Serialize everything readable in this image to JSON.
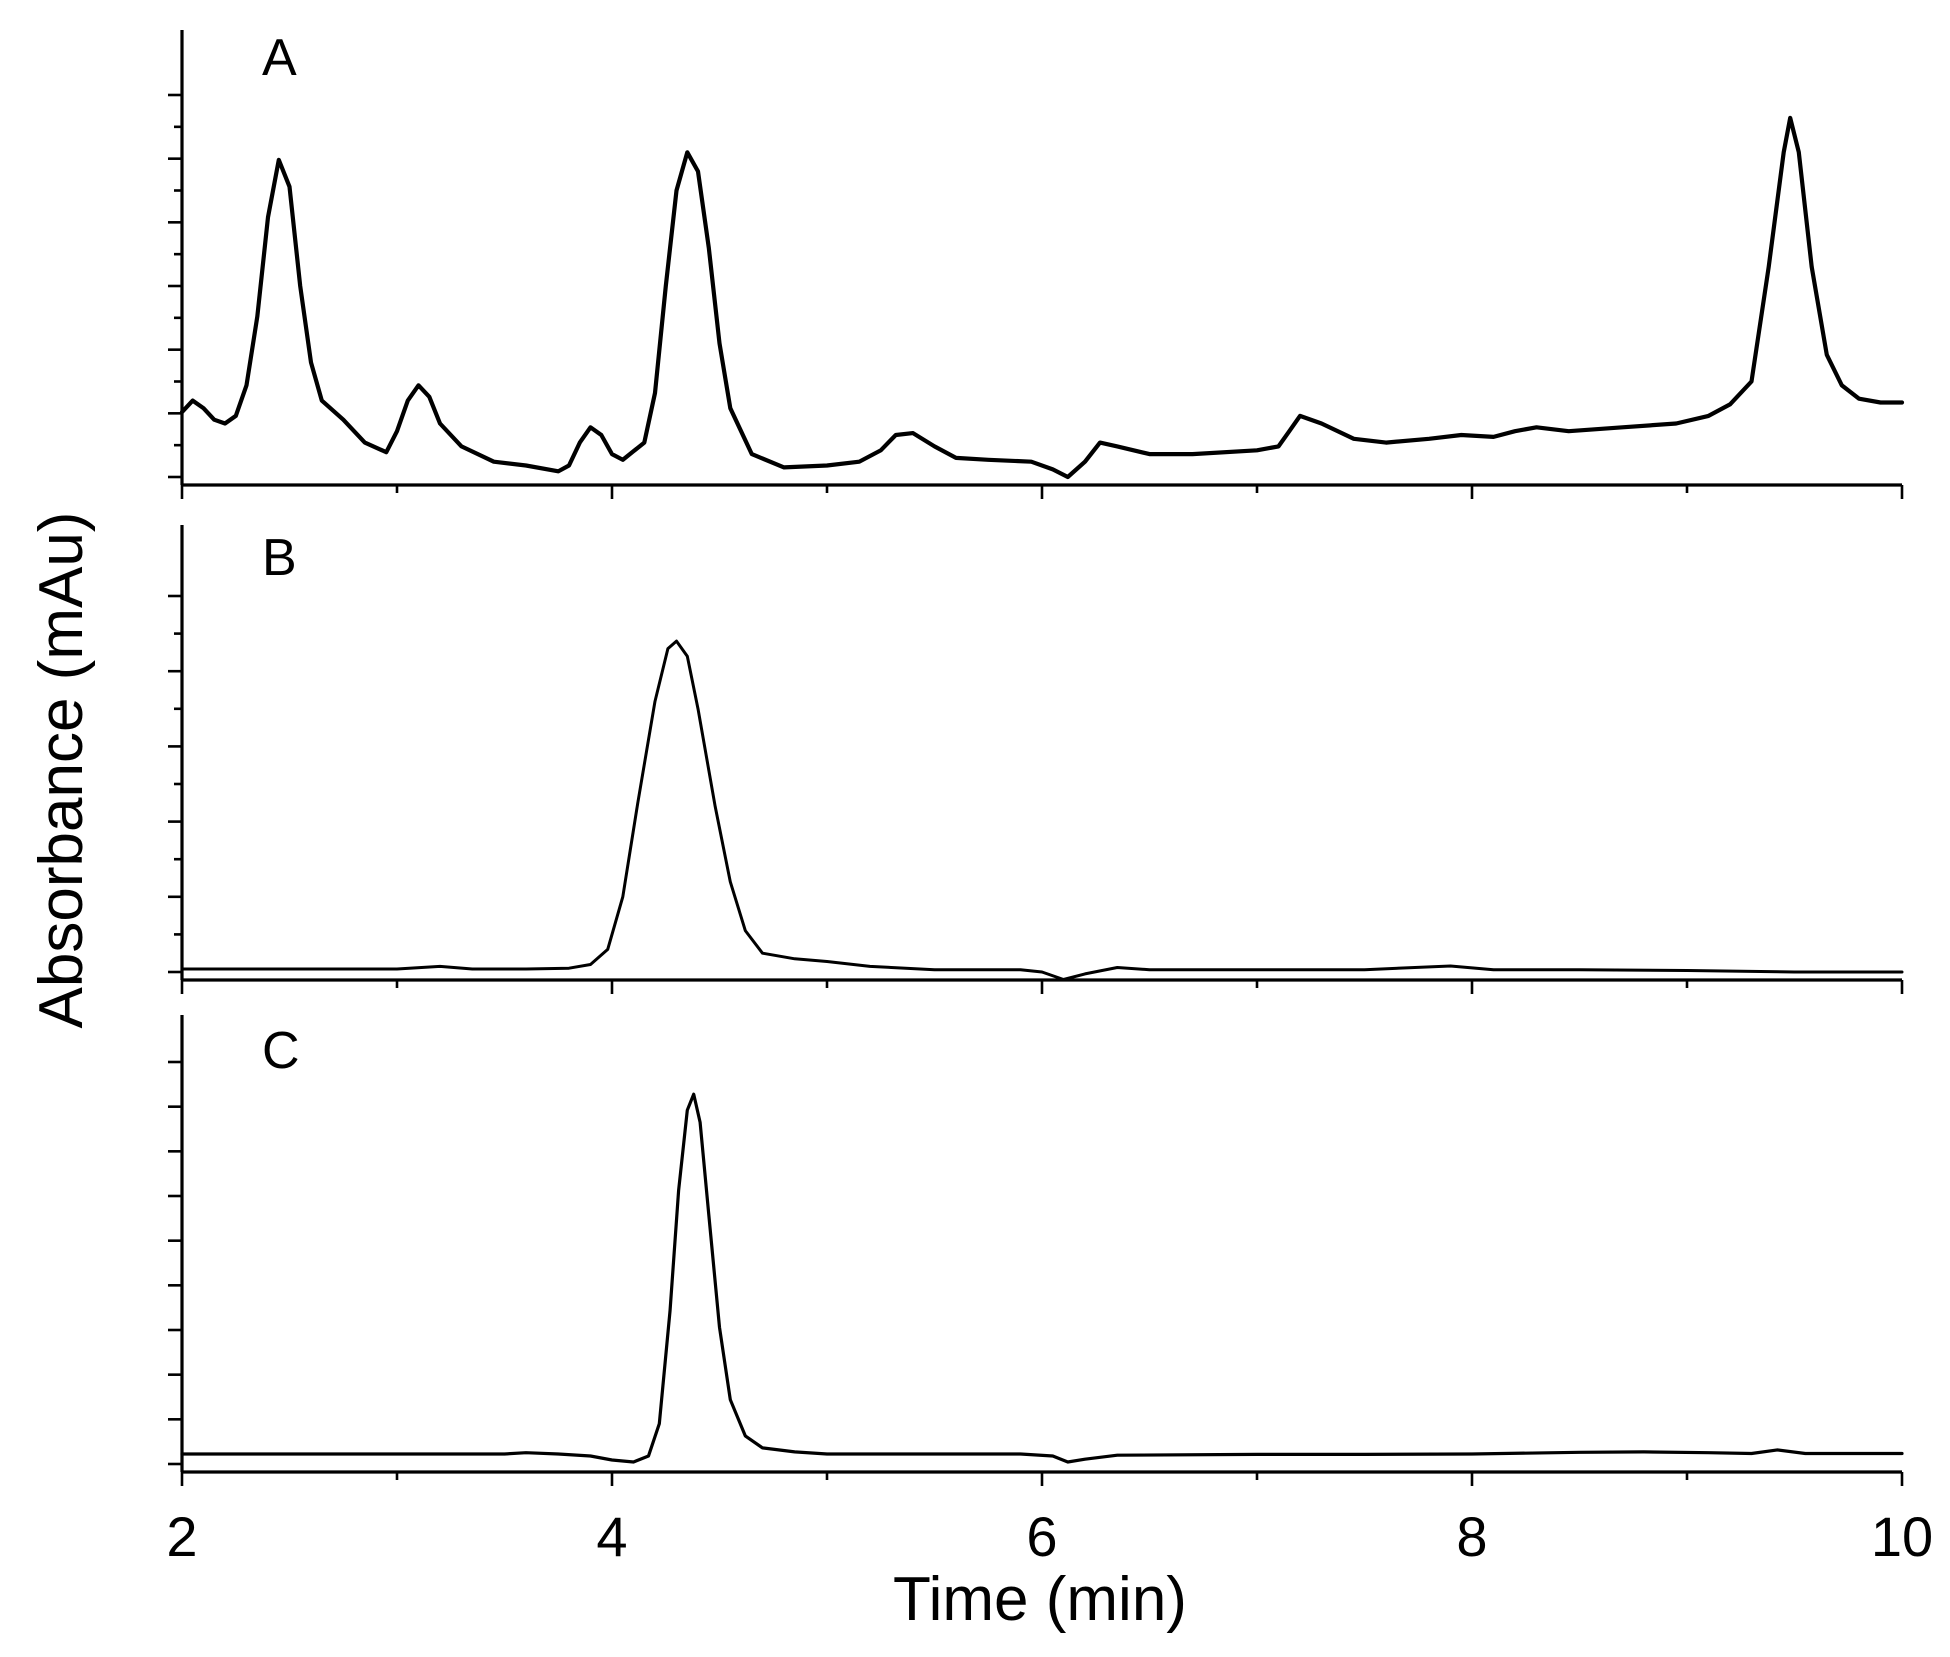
{
  "chart_data": {
    "type": "line",
    "xlabel": "Time (min)",
    "ylabel": "Absorbance (mAu)",
    "xlim": [
      2,
      10
    ],
    "x_ticks": [
      "2",
      "4",
      "6",
      "8",
      "10"
    ],
    "grid": false,
    "y_tick_labels_shown": false,
    "panels": [
      {
        "label": "A",
        "ylim": [
          0,
          100
        ],
        "points": [
          [
            2.0,
            17
          ],
          [
            2.05,
            20
          ],
          [
            2.1,
            18
          ],
          [
            2.15,
            15
          ],
          [
            2.2,
            14
          ],
          [
            2.25,
            16
          ],
          [
            2.3,
            24
          ],
          [
            2.35,
            42
          ],
          [
            2.4,
            68
          ],
          [
            2.45,
            83
          ],
          [
            2.5,
            76
          ],
          [
            2.55,
            50
          ],
          [
            2.6,
            30
          ],
          [
            2.65,
            20
          ],
          [
            2.75,
            15
          ],
          [
            2.85,
            9
          ],
          [
            2.95,
            6.5
          ],
          [
            3.0,
            12
          ],
          [
            3.05,
            20
          ],
          [
            3.1,
            24
          ],
          [
            3.15,
            21
          ],
          [
            3.2,
            14
          ],
          [
            3.3,
            8
          ],
          [
            3.45,
            4
          ],
          [
            3.6,
            3
          ],
          [
            3.75,
            1.5
          ],
          [
            3.8,
            3
          ],
          [
            3.85,
            9
          ],
          [
            3.9,
            13
          ],
          [
            3.95,
            11
          ],
          [
            4.0,
            6
          ],
          [
            4.05,
            4.5
          ],
          [
            4.15,
            9
          ],
          [
            4.2,
            22
          ],
          [
            4.25,
            50
          ],
          [
            4.3,
            75
          ],
          [
            4.35,
            85
          ],
          [
            4.4,
            80
          ],
          [
            4.45,
            60
          ],
          [
            4.5,
            35
          ],
          [
            4.55,
            18
          ],
          [
            4.65,
            6
          ],
          [
            4.8,
            2.5
          ],
          [
            5.0,
            3
          ],
          [
            5.15,
            4
          ],
          [
            5.25,
            7
          ],
          [
            5.32,
            11
          ],
          [
            5.4,
            11.5
          ],
          [
            5.5,
            8
          ],
          [
            5.6,
            5
          ],
          [
            5.75,
            4.5
          ],
          [
            5.95,
            4
          ],
          [
            6.05,
            2
          ],
          [
            6.12,
            0
          ],
          [
            6.2,
            4
          ],
          [
            6.27,
            9
          ],
          [
            6.35,
            8
          ],
          [
            6.5,
            6
          ],
          [
            6.7,
            6
          ],
          [
            7.0,
            7
          ],
          [
            7.1,
            8
          ],
          [
            7.15,
            12
          ],
          [
            7.2,
            16
          ],
          [
            7.3,
            14
          ],
          [
            7.45,
            10
          ],
          [
            7.6,
            9
          ],
          [
            7.8,
            10
          ],
          [
            7.95,
            11
          ],
          [
            8.1,
            10.5
          ],
          [
            8.2,
            12
          ],
          [
            8.3,
            13
          ],
          [
            8.45,
            12
          ],
          [
            8.7,
            13
          ],
          [
            8.95,
            14
          ],
          [
            9.1,
            16
          ],
          [
            9.2,
            19
          ],
          [
            9.3,
            25
          ],
          [
            9.38,
            55
          ],
          [
            9.45,
            85
          ],
          [
            9.48,
            94
          ],
          [
            9.52,
            85
          ],
          [
            9.58,
            55
          ],
          [
            9.65,
            32
          ],
          [
            9.72,
            24
          ],
          [
            9.8,
            20.5
          ],
          [
            9.9,
            19.5
          ],
          [
            10.0,
            19.5
          ]
        ]
      },
      {
        "label": "B",
        "ylim": [
          0,
          100
        ],
        "points": [
          [
            2.0,
            0.8
          ],
          [
            2.5,
            0.8
          ],
          [
            3.0,
            0.8
          ],
          [
            3.2,
            1.5
          ],
          [
            3.35,
            0.8
          ],
          [
            3.6,
            0.8
          ],
          [
            3.8,
            1
          ],
          [
            3.9,
            2
          ],
          [
            3.98,
            6
          ],
          [
            4.05,
            20
          ],
          [
            4.12,
            45
          ],
          [
            4.2,
            72
          ],
          [
            4.26,
            86
          ],
          [
            4.3,
            88
          ],
          [
            4.35,
            84
          ],
          [
            4.4,
            70
          ],
          [
            4.48,
            44
          ],
          [
            4.55,
            24
          ],
          [
            4.62,
            11
          ],
          [
            4.7,
            5
          ],
          [
            4.85,
            3.5
          ],
          [
            5.0,
            2.8
          ],
          [
            5.2,
            1.5
          ],
          [
            5.5,
            0.6
          ],
          [
            5.9,
            0.6
          ],
          [
            6.0,
            0
          ],
          [
            6.1,
            -2
          ],
          [
            6.2,
            -0.5
          ],
          [
            6.35,
            1.2
          ],
          [
            6.5,
            0.6
          ],
          [
            7.0,
            0.6
          ],
          [
            7.5,
            0.6
          ],
          [
            7.9,
            1.6
          ],
          [
            8.1,
            0.6
          ],
          [
            8.5,
            0.6
          ],
          [
            9.0,
            0.4
          ],
          [
            9.5,
            0
          ],
          [
            10.0,
            0
          ]
        ]
      },
      {
        "label": "C",
        "ylim": [
          0,
          100
        ],
        "points": [
          [
            2.0,
            2.5
          ],
          [
            2.5,
            2.5
          ],
          [
            3.0,
            2.5
          ],
          [
            3.5,
            2.5
          ],
          [
            3.6,
            2.8
          ],
          [
            3.75,
            2.5
          ],
          [
            3.9,
            2
          ],
          [
            4.0,
            1
          ],
          [
            4.1,
            0.5
          ],
          [
            4.17,
            2
          ],
          [
            4.22,
            10
          ],
          [
            4.27,
            38
          ],
          [
            4.31,
            68
          ],
          [
            4.35,
            88
          ],
          [
            4.38,
            92
          ],
          [
            4.41,
            85
          ],
          [
            4.45,
            62
          ],
          [
            4.5,
            34
          ],
          [
            4.55,
            16
          ],
          [
            4.62,
            7
          ],
          [
            4.7,
            4
          ],
          [
            4.85,
            3
          ],
          [
            5.0,
            2.5
          ],
          [
            5.5,
            2.5
          ],
          [
            5.9,
            2.5
          ],
          [
            6.05,
            2
          ],
          [
            6.12,
            0.5
          ],
          [
            6.2,
            1.2
          ],
          [
            6.35,
            2.2
          ],
          [
            7.0,
            2.4
          ],
          [
            7.5,
            2.4
          ],
          [
            8.0,
            2.5
          ],
          [
            8.5,
            2.9
          ],
          [
            8.8,
            3
          ],
          [
            9.1,
            2.8
          ],
          [
            9.3,
            2.6
          ],
          [
            9.42,
            3.5
          ],
          [
            9.55,
            2.6
          ],
          [
            10.0,
            2.6
          ]
        ]
      }
    ]
  }
}
